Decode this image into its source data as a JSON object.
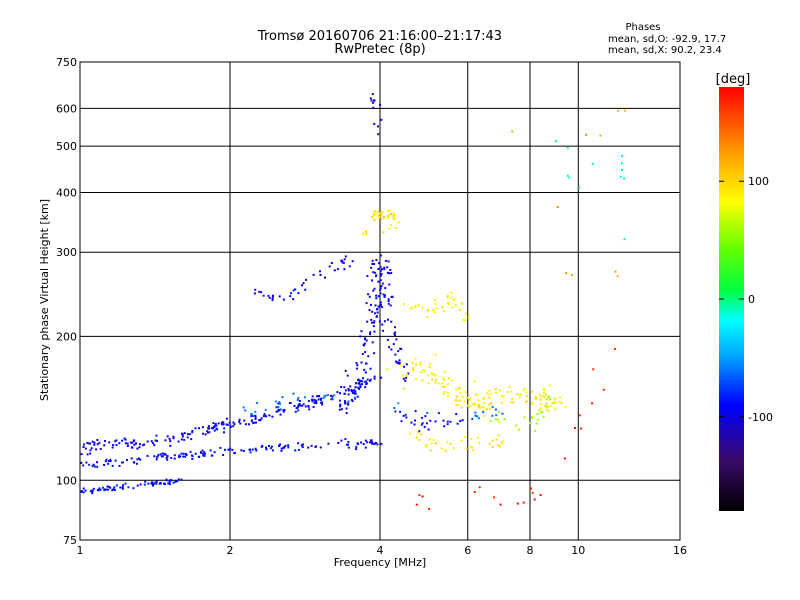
{
  "chart_data": {
    "type": "scatter",
    "title": "Tromsø 20160706 21:16:00–21:17:43",
    "subtitle": "RwPretec (8p)",
    "xlabel": "Frequency [MHz]",
    "ylabel": "Stationary phase Virtual Height [km]",
    "x_scale": "log",
    "y_scale": "log",
    "xlim": [
      1,
      16
    ],
    "ylim": [
      75,
      750
    ],
    "x_ticks": [
      1,
      2,
      4,
      6,
      8,
      10,
      16
    ],
    "x_tick_labels": [
      "1",
      "2",
      "4",
      "6",
      "8",
      "10",
      "16"
    ],
    "y_ticks": [
      75,
      100,
      200,
      300,
      400,
      500,
      600,
      750
    ],
    "y_tick_labels": [
      "75",
      "100",
      "200",
      "300",
      "400",
      "500",
      "600",
      "750"
    ],
    "grid": true,
    "stats": {
      "heading": "Phases",
      "o_line": "mean, sd,O: -92.9, 17.7",
      "x_line": "mean, sd,X:  90.2, 23.4"
    },
    "colorbar": {
      "unit_label": "[deg]",
      "range": [
        -180,
        180
      ],
      "ticks": [
        100,
        0,
        -100
      ],
      "tick_labels": [
        "100",
        "0",
        "-100"
      ]
    },
    "clusters": [
      {
        "phase": -95,
        "count": 230,
        "points": [
          [
            1.0,
            117
          ],
          [
            1.1,
            118
          ],
          [
            1.25,
            119
          ],
          [
            1.5,
            122
          ],
          [
            1.75,
            126
          ],
          [
            2.0,
            131
          ],
          [
            2.3,
            136
          ],
          [
            2.6,
            142
          ],
          [
            3.0,
            147
          ],
          [
            3.5,
            154
          ],
          [
            3.9,
            163
          ]
        ],
        "spread": 0.045
      },
      {
        "phase": -92,
        "count": 150,
        "points": [
          [
            1.0,
            108
          ],
          [
            1.2,
            109
          ],
          [
            1.45,
            112
          ],
          [
            1.7,
            113
          ],
          [
            2.0,
            115
          ],
          [
            2.5,
            117
          ],
          [
            3.0,
            118
          ],
          [
            3.5,
            119
          ],
          [
            4.0,
            119
          ]
        ],
        "spread": 0.03
      },
      {
        "phase": -88,
        "count": 70,
        "points": [
          [
            1.0,
            95
          ],
          [
            1.15,
            96
          ],
          [
            1.3,
            97
          ],
          [
            1.45,
            99
          ],
          [
            1.6,
            100
          ]
        ],
        "spread": 0.025
      },
      {
        "phase": -98,
        "count": 160,
        "points": [
          [
            3.4,
            140
          ],
          [
            3.7,
            175
          ],
          [
            3.85,
            215
          ],
          [
            3.95,
            260
          ],
          [
            4.0,
            290
          ],
          [
            4.15,
            210
          ],
          [
            4.5,
            165
          ]
        ],
        "spread": 0.07
      },
      {
        "phase": -95,
        "count": 40,
        "points": [
          [
            2.2,
            250
          ],
          [
            2.5,
            240
          ],
          [
            2.8,
            255
          ],
          [
            3.2,
            280
          ],
          [
            3.6,
            290
          ]
        ],
        "spread": 0.04
      },
      {
        "phase": -100,
        "count": 12,
        "points": [
          [
            3.9,
            640
          ],
          [
            3.95,
            600
          ],
          [
            3.95,
            520
          ]
        ],
        "spread": 0.03
      },
      {
        "phase": -90,
        "count": 30,
        "points": [
          [
            4.4,
            140
          ],
          [
            4.8,
            130
          ],
          [
            5.4,
            135
          ],
          [
            6.0,
            135
          ]
        ],
        "spread": 0.06
      },
      {
        "phase": 90,
        "count": 150,
        "points": [
          [
            4.3,
            165
          ],
          [
            4.8,
            175
          ],
          [
            5.3,
            160
          ],
          [
            5.8,
            150
          ],
          [
            6.2,
            145
          ],
          [
            6.8,
            150
          ],
          [
            7.5,
            150
          ],
          [
            8.5,
            145
          ],
          [
            9.2,
            150
          ]
        ],
        "spread": 0.09
      },
      {
        "phase": 95,
        "count": 40,
        "points": [
          [
            3.8,
            355
          ],
          [
            4.1,
            365
          ],
          [
            4.4,
            345
          ],
          [
            3.6,
            320
          ]
        ],
        "spread": 0.04
      },
      {
        "phase": 85,
        "count": 35,
        "points": [
          [
            4.5,
            240
          ],
          [
            5.0,
            225
          ],
          [
            5.6,
            240
          ],
          [
            6.0,
            215
          ]
        ],
        "spread": 0.05
      },
      {
        "phase": 92,
        "count": 35,
        "points": [
          [
            4.6,
            125
          ],
          [
            5.2,
            118
          ],
          [
            5.8,
            120
          ],
          [
            6.6,
            118
          ],
          [
            7.2,
            122
          ]
        ],
        "spread": 0.05
      },
      {
        "phase": -60,
        "count": 40,
        "points": [
          [
            2.1,
            140
          ],
          [
            2.6,
            145
          ],
          [
            3.2,
            150
          ],
          [
            6.2,
            135
          ],
          [
            7.0,
            140
          ]
        ],
        "spread": 0.06
      },
      {
        "phase": 60,
        "count": 25,
        "points": [
          [
            6.5,
            140
          ],
          [
            7.6,
            130
          ],
          [
            8.4,
            135
          ],
          [
            9.0,
            150
          ]
        ],
        "spread": 0.06
      },
      {
        "phase": 170,
        "count": 22,
        "points": [
          [
            4.6,
            90
          ],
          [
            6.5,
            95
          ],
          [
            7.5,
            90
          ],
          [
            8.5,
            95
          ],
          [
            12.3,
            190
          ],
          [
            9.0,
            130
          ]
        ],
        "spread": 0.06
      },
      {
        "phase": -10,
        "count": 12,
        "points": [
          [
            12.3,
            480
          ],
          [
            12.3,
            430
          ],
          [
            7.7,
            560
          ],
          [
            12.3,
            320
          ]
        ],
        "spread": 0.03
      },
      {
        "phase": 120,
        "count": 10,
        "points": [
          [
            12.3,
            640
          ],
          [
            12.3,
            520
          ],
          [
            6.6,
            540
          ],
          [
            12.3,
            270
          ],
          [
            8.7,
            270
          ]
        ],
        "spread": 0.03
      }
    ]
  }
}
